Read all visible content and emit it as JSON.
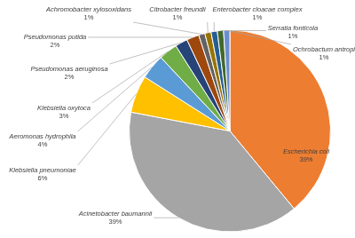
{
  "chart_data": {
    "type": "pie",
    "categories": [
      "Escherichia coli",
      "Acinetobacter baumannii",
      "Klebsiella pneumoniae",
      "Aeromonas hydrophila",
      "Klebsiella oxytoca",
      "Pseudomonas aeruginosa",
      "Pseudomonas putida",
      "Achromobacter xylosoxidans",
      "Citrobacter freundii",
      "Enterobacter cloacae complex",
      "Serratia fonticola",
      "Ochrobactum antropi"
    ],
    "values": [
      39,
      39,
      6,
      4,
      3,
      2,
      2,
      1,
      1,
      1,
      1,
      1
    ],
    "value_labels": [
      "39%",
      "39%",
      "6%",
      "4%",
      "3%",
      "2%",
      "2%",
      "1%",
      "1%",
      "1%",
      "1%",
      "1%"
    ],
    "colors": [
      "#ed7d31",
      "#a5a5a5",
      "#ffc000",
      "#5b9bd5",
      "#70ad47",
      "#264478",
      "#9e480e",
      "#636363",
      "#997300",
      "#255e91",
      "#43682b",
      "#698ed0"
    ],
    "data_labels": true
  }
}
